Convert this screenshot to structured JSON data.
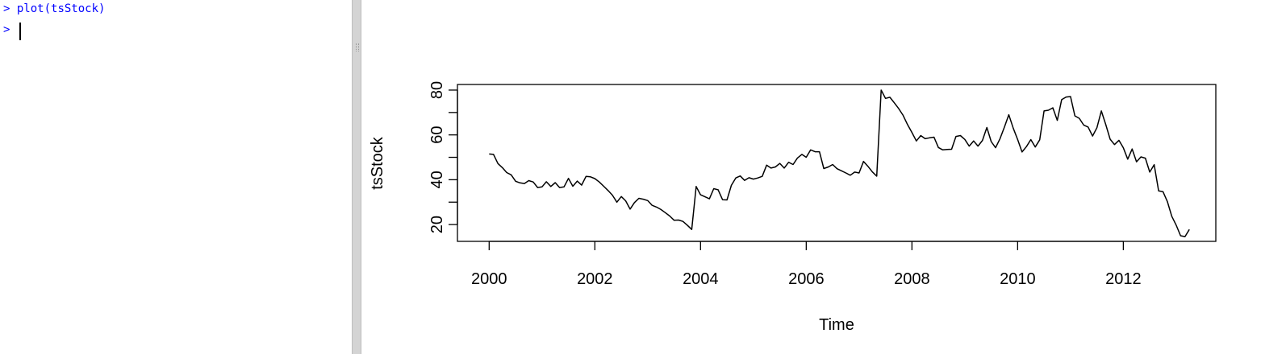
{
  "console": {
    "lines": [
      {
        "prompt": ">",
        "text": "plot(tsStock)"
      },
      {
        "prompt": ">",
        "text": ""
      }
    ]
  },
  "plot": {
    "xlabel": "Time",
    "ylabel": "tsStock"
  },
  "chart_data": {
    "type": "line",
    "xlabel": "Time",
    "ylabel": "tsStock",
    "xlim": [
      1999.4,
      2013.75
    ],
    "ylim": [
      12.5,
      82.5
    ],
    "x_ticks": [
      2000,
      2002,
      2004,
      2006,
      2008,
      2010,
      2012
    ],
    "y_ticks": [
      20,
      40,
      60,
      80
    ],
    "line_color": "#000000",
    "series": [
      {
        "x": [
          2000.0,
          2000.083,
          2000.167,
          2000.25,
          2000.333,
          2000.417,
          2000.5,
          2000.583,
          2000.667,
          2000.75,
          2000.833,
          2000.917,
          2001.0,
          2001.083,
          2001.167,
          2001.25,
          2001.333,
          2001.417,
          2001.5,
          2001.583,
          2001.667,
          2001.75,
          2001.833,
          2001.917,
          2002.0,
          2002.083,
          2002.167,
          2002.25,
          2002.333,
          2002.417,
          2002.5,
          2002.583,
          2002.667,
          2002.75,
          2002.833,
          2002.917,
          2003.0,
          2003.083,
          2003.167,
          2003.25,
          2003.333,
          2003.417,
          2003.5,
          2003.583,
          2003.667,
          2003.75,
          2003.833,
          2003.917,
          2004.0,
          2004.083,
          2004.167,
          2004.25,
          2004.333,
          2004.417,
          2004.5,
          2004.583,
          2004.667,
          2004.75,
          2004.833,
          2004.917,
          2005.0,
          2005.083,
          2005.167,
          2005.25,
          2005.333,
          2005.417,
          2005.5,
          2005.583,
          2005.667,
          2005.75,
          2005.833,
          2005.917,
          2006.0,
          2006.083,
          2006.167,
          2006.25,
          2006.333,
          2006.417,
          2006.5,
          2006.583,
          2006.667,
          2006.75,
          2006.833,
          2006.917,
          2007.0,
          2007.083,
          2007.167,
          2007.25,
          2007.333,
          2007.417,
          2007.5,
          2007.583,
          2007.667,
          2007.75,
          2007.833,
          2007.917,
          2008.0,
          2008.083,
          2008.167,
          2008.25,
          2008.333,
          2008.417,
          2008.5,
          2008.583,
          2008.667,
          2008.75,
          2008.833,
          2008.917,
          2009.0,
          2009.083,
          2009.167,
          2009.25,
          2009.333,
          2009.417,
          2009.5,
          2009.583,
          2009.667,
          2009.75,
          2009.833,
          2009.917,
          2010.0,
          2010.083,
          2010.167,
          2010.25,
          2010.333,
          2010.417,
          2010.5,
          2010.583,
          2010.667,
          2010.75,
          2010.833,
          2010.917,
          2011.0,
          2011.083,
          2011.167,
          2011.25,
          2011.333,
          2011.417,
          2011.5,
          2011.583,
          2011.667,
          2011.75,
          2011.833,
          2011.917,
          2012.0,
          2012.083,
          2012.167,
          2012.25,
          2012.333,
          2012.417,
          2012.5,
          2012.583,
          2012.667,
          2012.75,
          2012.833,
          2012.917,
          2013.0,
          2013.083,
          2013.167,
          2013.25
        ],
        "y": [
          51.5,
          51.3,
          47.2,
          45.4,
          43.2,
          42.2,
          39.3,
          38.6,
          38.3,
          39.6,
          39.0,
          36.5,
          36.8,
          39.1,
          37.0,
          38.7,
          36.5,
          36.8,
          40.6,
          37.1,
          39.4,
          37.6,
          41.5,
          41.3,
          40.5,
          39.0,
          37.1,
          35.2,
          33.1,
          30.0,
          32.5,
          30.6,
          26.9,
          29.8,
          31.7,
          31.3,
          30.7,
          28.6,
          27.8,
          26.7,
          25.3,
          23.8,
          21.9,
          22.0,
          21.4,
          19.7,
          17.8,
          37.0,
          33.3,
          32.4,
          31.5,
          36.0,
          35.5,
          31.1,
          31.0,
          37.5,
          40.8,
          41.7,
          39.7,
          40.9,
          40.3,
          40.8,
          41.5,
          46.5,
          45.2,
          45.7,
          47.3,
          45.2,
          47.8,
          46.8,
          49.7,
          51.3,
          50.0,
          53.3,
          52.5,
          52.5,
          45.0,
          45.7,
          46.8,
          44.9,
          44.0,
          43.0,
          42.0,
          43.4,
          43.0,
          48.2,
          46.0,
          43.5,
          41.6,
          80.0,
          76.3,
          76.8,
          74.3,
          71.7,
          68.7,
          64.6,
          61.1,
          57.3,
          59.7,
          58.3,
          58.7,
          59.0,
          54.4,
          53.3,
          53.5,
          53.6,
          59.3,
          59.7,
          58.0,
          55.0,
          57.3,
          55.0,
          57.5,
          63.3,
          57.0,
          54.3,
          58.3,
          63.5,
          69.0,
          63.0,
          57.9,
          52.4,
          54.8,
          57.9,
          54.6,
          57.8,
          70.7,
          71.0,
          72.1,
          66.5,
          75.7,
          76.9,
          77.1,
          68.5,
          67.4,
          64.4,
          63.5,
          59.5,
          63.2,
          70.7,
          64.6,
          58.1,
          55.7,
          57.6,
          54.2,
          49.2,
          53.7,
          48.0,
          50.2,
          49.6,
          43.4,
          46.7,
          35.0,
          34.7,
          30.3,
          23.7,
          19.7,
          15.0,
          14.6,
          17.8
        ]
      }
    ]
  }
}
